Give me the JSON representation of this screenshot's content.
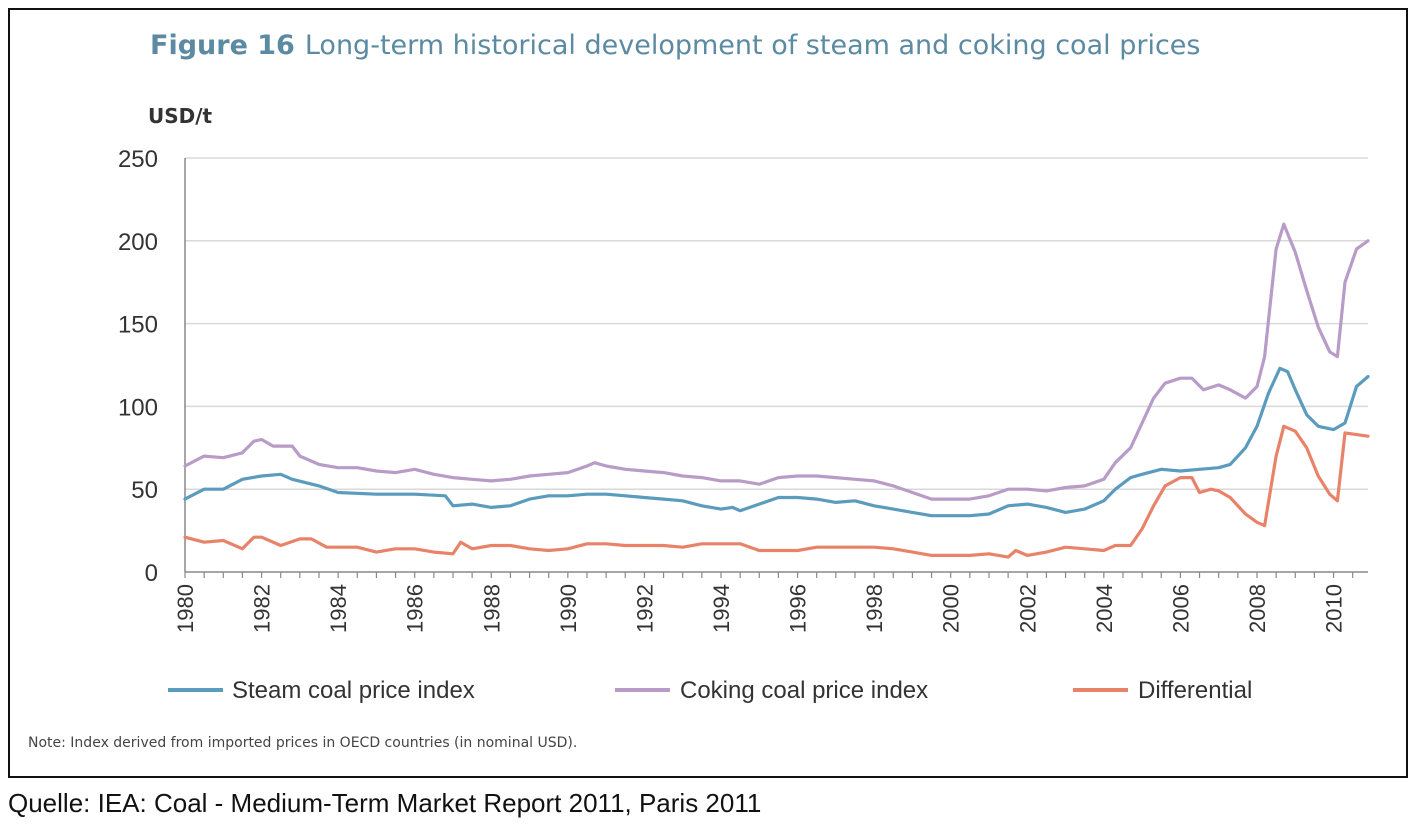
{
  "figure_label": "Figure 16",
  "figure_title": "Long-term historical development of steam and coking coal prices",
  "note": "Note: Index derived from imported prices in OECD countries (in nominal USD).",
  "source": "Quelle: IEA: Coal - Medium-Term Market Report 2011, Paris 2011",
  "chart_data": {
    "type": "line",
    "title": "Long-term historical development of steam and coking coal prices",
    "ylabel": "USD/t",
    "xlabel": "",
    "ylim": [
      0,
      250
    ],
    "xlim": [
      1980,
      2010.9
    ],
    "yticks": [
      0,
      50,
      100,
      150,
      200,
      250
    ],
    "xticks": [
      "1980",
      "1982",
      "1984",
      "1986",
      "1988",
      "1990",
      "1992",
      "1994",
      "1996",
      "1998",
      "2000",
      "2002",
      "2004",
      "2006",
      "2008",
      "2010"
    ],
    "grid": "horizontal",
    "legend": "bottom",
    "series": [
      {
        "name": "Steam coal price index",
        "color": "#5b9bbd",
        "points": [
          [
            1980,
            44
          ],
          [
            1980.5,
            50
          ],
          [
            1981,
            50
          ],
          [
            1981.5,
            56
          ],
          [
            1982,
            58
          ],
          [
            1982.5,
            59
          ],
          [
            1982.8,
            56
          ],
          [
            1983.5,
            52
          ],
          [
            1984,
            48
          ],
          [
            1985,
            47
          ],
          [
            1986,
            47
          ],
          [
            1986.8,
            46
          ],
          [
            1987,
            40
          ],
          [
            1987.5,
            41
          ],
          [
            1988,
            39
          ],
          [
            1988.5,
            40
          ],
          [
            1989,
            44
          ],
          [
            1989.5,
            46
          ],
          [
            1990,
            46
          ],
          [
            1990.5,
            47
          ],
          [
            1991,
            47
          ],
          [
            1991.5,
            46
          ],
          [
            1992,
            45
          ],
          [
            1992.5,
            44
          ],
          [
            1993,
            43
          ],
          [
            1993.5,
            40
          ],
          [
            1994,
            38
          ],
          [
            1994.3,
            39
          ],
          [
            1994.5,
            37
          ],
          [
            1995,
            41
          ],
          [
            1995.5,
            45
          ],
          [
            1996,
            45
          ],
          [
            1996.5,
            44
          ],
          [
            1997,
            42
          ],
          [
            1997.5,
            43
          ],
          [
            1998,
            40
          ],
          [
            1998.5,
            38
          ],
          [
            1999,
            36
          ],
          [
            1999.5,
            34
          ],
          [
            2000,
            34
          ],
          [
            2000.5,
            34
          ],
          [
            2001,
            35
          ],
          [
            2001.5,
            40
          ],
          [
            2002,
            41
          ],
          [
            2002.5,
            39
          ],
          [
            2003,
            36
          ],
          [
            2003.5,
            38
          ],
          [
            2004,
            43
          ],
          [
            2004.3,
            50
          ],
          [
            2004.7,
            57
          ],
          [
            2005,
            59
          ],
          [
            2005.5,
            62
          ],
          [
            2006,
            61
          ],
          [
            2006.5,
            62
          ],
          [
            2007,
            63
          ],
          [
            2007.3,
            65
          ],
          [
            2007.7,
            75
          ],
          [
            2008,
            88
          ],
          [
            2008.3,
            108
          ],
          [
            2008.6,
            123
          ],
          [
            2008.8,
            121
          ],
          [
            2009,
            110
          ],
          [
            2009.3,
            95
          ],
          [
            2009.6,
            88
          ],
          [
            2010,
            86
          ],
          [
            2010.3,
            90
          ],
          [
            2010.6,
            112
          ],
          [
            2010.9,
            118
          ]
        ]
      },
      {
        "name": "Coking coal price index",
        "color": "#b99bc7",
        "points": [
          [
            1980,
            64
          ],
          [
            1980.5,
            70
          ],
          [
            1981,
            69
          ],
          [
            1981.5,
            72
          ],
          [
            1981.8,
            79
          ],
          [
            1982,
            80
          ],
          [
            1982.3,
            76
          ],
          [
            1982.8,
            76
          ],
          [
            1983,
            70
          ],
          [
            1983.5,
            65
          ],
          [
            1984,
            63
          ],
          [
            1984.5,
            63
          ],
          [
            1985,
            61
          ],
          [
            1985.5,
            60
          ],
          [
            1986,
            62
          ],
          [
            1986.5,
            59
          ],
          [
            1987,
            57
          ],
          [
            1987.5,
            56
          ],
          [
            1988,
            55
          ],
          [
            1988.5,
            56
          ],
          [
            1989,
            58
          ],
          [
            1989.5,
            59
          ],
          [
            1990,
            60
          ],
          [
            1990.5,
            64
          ],
          [
            1990.7,
            66
          ],
          [
            1991,
            64
          ],
          [
            1991.5,
            62
          ],
          [
            1992,
            61
          ],
          [
            1992.5,
            60
          ],
          [
            1993,
            58
          ],
          [
            1993.5,
            57
          ],
          [
            1994,
            55
          ],
          [
            1994.5,
            55
          ],
          [
            1995,
            53
          ],
          [
            1995.5,
            57
          ],
          [
            1996,
            58
          ],
          [
            1996.5,
            58
          ],
          [
            1997,
            57
          ],
          [
            1997.5,
            56
          ],
          [
            1998,
            55
          ],
          [
            1998.5,
            52
          ],
          [
            1999,
            48
          ],
          [
            1999.5,
            44
          ],
          [
            2000,
            44
          ],
          [
            2000.5,
            44
          ],
          [
            2001,
            46
          ],
          [
            2001.5,
            50
          ],
          [
            2002,
            50
          ],
          [
            2002.5,
            49
          ],
          [
            2003,
            51
          ],
          [
            2003.5,
            52
          ],
          [
            2004,
            56
          ],
          [
            2004.3,
            66
          ],
          [
            2004.7,
            75
          ],
          [
            2005,
            90
          ],
          [
            2005.3,
            105
          ],
          [
            2005.6,
            114
          ],
          [
            2006,
            117
          ],
          [
            2006.3,
            117
          ],
          [
            2006.6,
            110
          ],
          [
            2007,
            113
          ],
          [
            2007.3,
            110
          ],
          [
            2007.7,
            105
          ],
          [
            2008,
            112
          ],
          [
            2008.2,
            130
          ],
          [
            2008.5,
            195
          ],
          [
            2008.7,
            210
          ],
          [
            2009,
            193
          ],
          [
            2009.3,
            170
          ],
          [
            2009.6,
            148
          ],
          [
            2009.9,
            133
          ],
          [
            2010.1,
            130
          ],
          [
            2010.3,
            175
          ],
          [
            2010.6,
            195
          ],
          [
            2010.9,
            200
          ]
        ]
      },
      {
        "name": "Differential",
        "color": "#e8836a",
        "points": [
          [
            1980,
            21
          ],
          [
            1980.5,
            18
          ],
          [
            1981,
            19
          ],
          [
            1981.5,
            14
          ],
          [
            1981.8,
            21
          ],
          [
            1982,
            21
          ],
          [
            1982.5,
            16
          ],
          [
            1983,
            20
          ],
          [
            1983.3,
            20
          ],
          [
            1983.7,
            15
          ],
          [
            1984,
            15
          ],
          [
            1984.5,
            15
          ],
          [
            1985,
            12
          ],
          [
            1985.5,
            14
          ],
          [
            1986,
            14
          ],
          [
            1986.5,
            12
          ],
          [
            1987,
            11
          ],
          [
            1987.2,
            18
          ],
          [
            1987.5,
            14
          ],
          [
            1988,
            16
          ],
          [
            1988.5,
            16
          ],
          [
            1989,
            14
          ],
          [
            1989.5,
            13
          ],
          [
            1990,
            14
          ],
          [
            1990.5,
            17
          ],
          [
            1991,
            17
          ],
          [
            1991.5,
            16
          ],
          [
            1992,
            16
          ],
          [
            1992.5,
            16
          ],
          [
            1993,
            15
          ],
          [
            1993.5,
            17
          ],
          [
            1994,
            17
          ],
          [
            1994.5,
            17
          ],
          [
            1995,
            13
          ],
          [
            1995.5,
            13
          ],
          [
            1996,
            13
          ],
          [
            1996.5,
            15
          ],
          [
            1997,
            15
          ],
          [
            1997.5,
            15
          ],
          [
            1998,
            15
          ],
          [
            1998.5,
            14
          ],
          [
            1999,
            12
          ],
          [
            1999.5,
            10
          ],
          [
            2000,
            10
          ],
          [
            2000.5,
            10
          ],
          [
            2001,
            11
          ],
          [
            2001.5,
            9
          ],
          [
            2001.7,
            13
          ],
          [
            2002,
            10
          ],
          [
            2002.5,
            12
          ],
          [
            2003,
            15
          ],
          [
            2003.5,
            14
          ],
          [
            2004,
            13
          ],
          [
            2004.3,
            16
          ],
          [
            2004.7,
            16
          ],
          [
            2005,
            26
          ],
          [
            2005.3,
            40
          ],
          [
            2005.6,
            52
          ],
          [
            2006,
            57
          ],
          [
            2006.3,
            57
          ],
          [
            2006.5,
            48
          ],
          [
            2006.8,
            50
          ],
          [
            2007,
            49
          ],
          [
            2007.3,
            45
          ],
          [
            2007.7,
            35
          ],
          [
            2008,
            30
          ],
          [
            2008.2,
            28
          ],
          [
            2008.5,
            70
          ],
          [
            2008.7,
            88
          ],
          [
            2009,
            85
          ],
          [
            2009.3,
            75
          ],
          [
            2009.6,
            58
          ],
          [
            2009.9,
            47
          ],
          [
            2010.1,
            43
          ],
          [
            2010.3,
            84
          ],
          [
            2010.6,
            83
          ],
          [
            2010.9,
            82
          ]
        ]
      }
    ]
  }
}
